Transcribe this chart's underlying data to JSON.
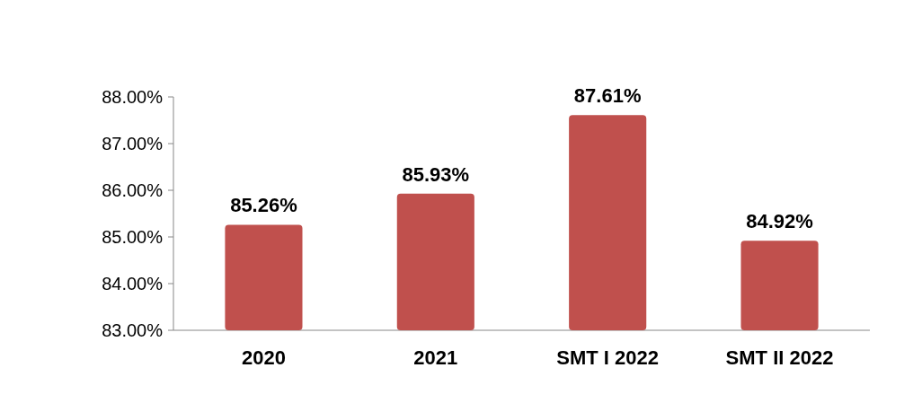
{
  "chart_data": {
    "type": "bar",
    "categories": [
      "2020",
      "2021",
      "SMT I 2022",
      "SMT II 2022"
    ],
    "values": [
      85.26,
      85.93,
      87.61,
      84.92
    ],
    "value_labels": [
      "85.26%",
      "85.93%",
      "87.61%",
      "84.92%"
    ],
    "color": "#c0504d",
    "ylim": [
      83,
      88
    ],
    "yticks": [
      {
        "value": 83,
        "label": "83.00%"
      },
      {
        "value": 84,
        "label": "84.00%"
      },
      {
        "value": 85,
        "label": "85.00%"
      },
      {
        "value": 86,
        "label": "86.00%"
      },
      {
        "value": 87,
        "label": "87.00%"
      },
      {
        "value": 88,
        "label": "88.00%"
      }
    ],
    "grid": false
  }
}
